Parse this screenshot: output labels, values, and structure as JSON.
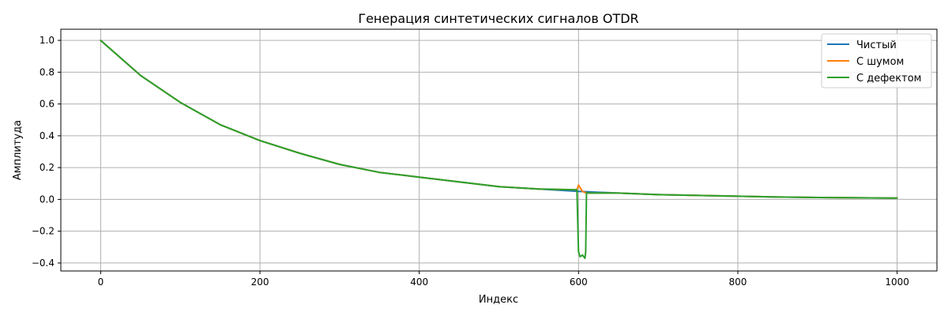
{
  "chart_data": {
    "type": "line",
    "title": "Генерация синтетических сигналов OTDR",
    "xlabel": "Индекс",
    "ylabel": "Амплитуда",
    "xlim": [
      -50,
      1050
    ],
    "ylim": [
      -0.45,
      1.07
    ],
    "grid": true,
    "legend_position": "top-right",
    "x_ticks": [
      0,
      200,
      400,
      600,
      800,
      1000
    ],
    "x_tick_labels": [
      "0",
      "200",
      "400",
      "600",
      "800",
      "1000"
    ],
    "y_ticks": [
      -0.4,
      -0.2,
      0.0,
      0.2,
      0.4,
      0.6,
      0.8,
      1.0
    ],
    "y_tick_labels": [
      "−0.4",
      "−0.2",
      "0.0",
      "0.2",
      "0.4",
      "0.6",
      "0.8",
      "1.0"
    ],
    "series": [
      {
        "name": "Чистый",
        "color": "#1f77b4",
        "x": [
          0,
          50,
          100,
          150,
          200,
          250,
          300,
          350,
          400,
          450,
          500,
          550,
          600,
          650,
          700,
          750,
          800,
          850,
          900,
          950,
          1000
        ],
        "values": [
          1.0,
          0.78,
          0.61,
          0.47,
          0.37,
          0.29,
          0.22,
          0.17,
          0.14,
          0.11,
          0.08,
          0.065,
          0.05,
          0.04,
          0.03,
          0.025,
          0.02,
          0.015,
          0.012,
          0.01,
          0.008
        ]
      },
      {
        "name": "С шумом",
        "color": "#ff7f0e",
        "x": [
          0,
          50,
          100,
          150,
          200,
          250,
          300,
          350,
          400,
          450,
          500,
          550,
          598,
          600,
          605,
          610,
          650,
          700,
          750,
          800,
          850,
          900,
          950,
          1000
        ],
        "values": [
          1.0,
          0.78,
          0.61,
          0.47,
          0.37,
          0.29,
          0.22,
          0.17,
          0.14,
          0.11,
          0.08,
          0.065,
          0.06,
          0.09,
          0.05,
          0.04,
          0.04,
          0.03,
          0.025,
          0.02,
          0.015,
          0.012,
          0.01,
          0.008
        ]
      },
      {
        "name": "С дефектом",
        "color": "#2ca02c",
        "x": [
          0,
          50,
          100,
          150,
          200,
          250,
          300,
          350,
          400,
          450,
          500,
          550,
          598,
          600,
          602,
          605,
          608,
          609,
          610,
          650,
          700,
          750,
          800,
          850,
          900,
          950,
          1000
        ],
        "values": [
          1.0,
          0.78,
          0.61,
          0.47,
          0.37,
          0.29,
          0.22,
          0.17,
          0.14,
          0.11,
          0.08,
          0.065,
          0.06,
          -0.33,
          -0.36,
          -0.35,
          -0.37,
          -0.33,
          0.04,
          0.04,
          0.03,
          0.025,
          0.02,
          0.015,
          0.012,
          0.01,
          0.008
        ]
      }
    ]
  }
}
